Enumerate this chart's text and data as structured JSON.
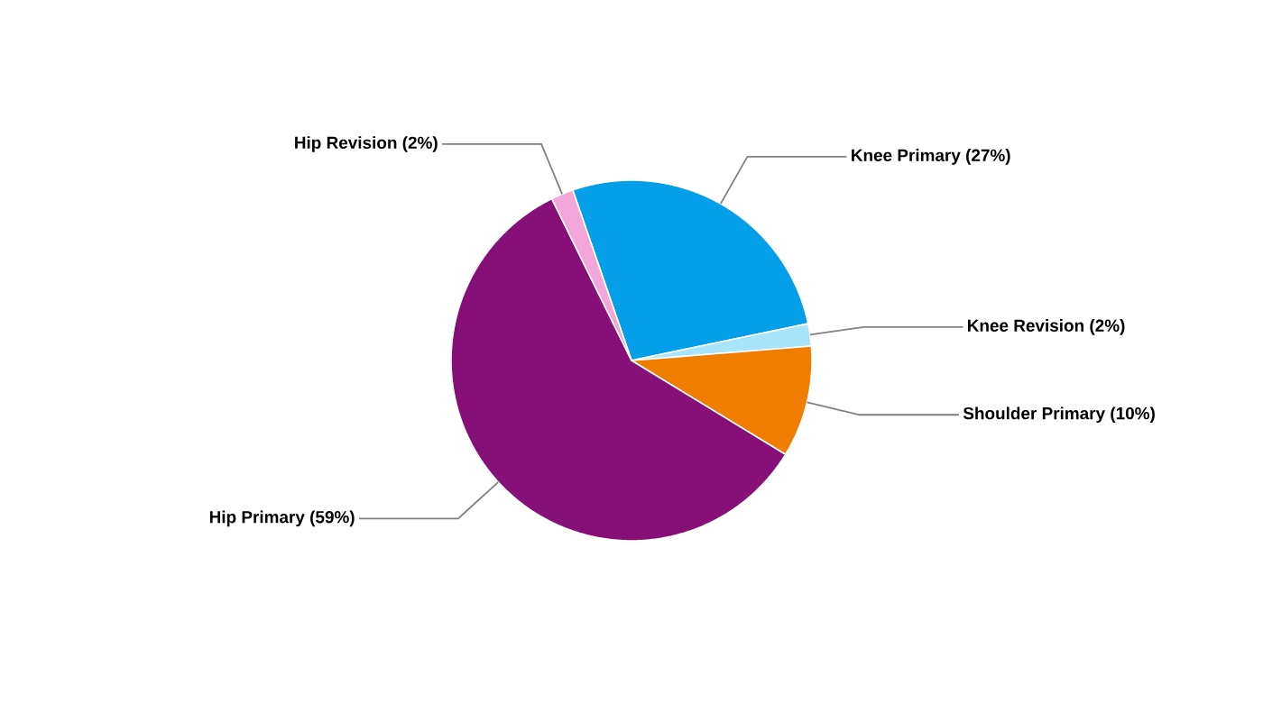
{
  "chart_data": {
    "type": "pie",
    "categories": [
      "Knee Primary (27%)",
      "Knee Revision (2%)",
      "Shoulder Primary (10%)",
      "Hip Primary (59%)",
      "Hip Revision (2%)"
    ],
    "values": [
      27,
      2,
      10,
      59,
      2
    ],
    "colors": [
      "#049fe8",
      "#a8e4fb",
      "#f07d00",
      "#870f78",
      "#f3a6d9"
    ]
  }
}
